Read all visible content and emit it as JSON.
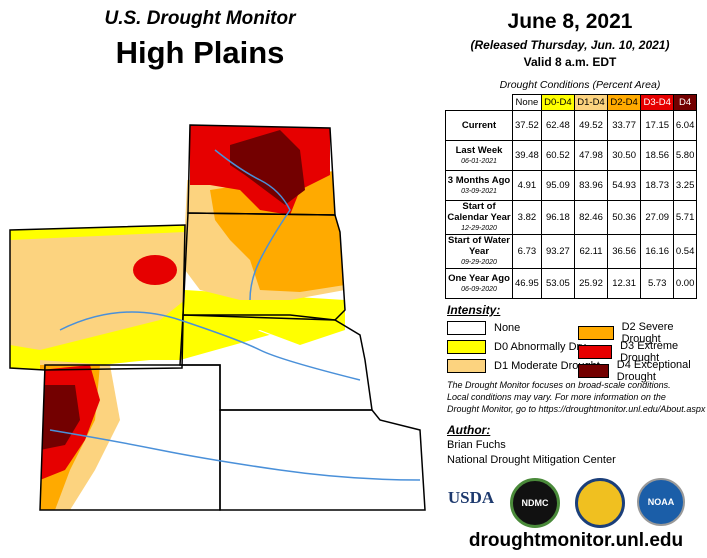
{
  "header": {
    "title": "U.S. Drought Monitor",
    "region": "High Plains",
    "date": "June 8, 2021",
    "released": "(Released Thursday, Jun. 10, 2021)",
    "valid": "Valid 8 a.m. EDT"
  },
  "table": {
    "caption": "Drought Conditions (Percent Area)",
    "columns": [
      "None",
      "D0-D4",
      "D1-D4",
      "D2-D4",
      "D3-D4",
      "D4"
    ],
    "column_colors": [
      "#ffffff",
      "#ffff00",
      "#fcd37f",
      "#ffaa00",
      "#e60000",
      "#730000"
    ],
    "rows": [
      {
        "label": "Current",
        "values": [
          "37.52",
          "62.48",
          "49.52",
          "33.77",
          "17.15",
          "6.04"
        ]
      },
      {
        "label": "Last Week",
        "date": "06-01-2021",
        "values": [
          "39.48",
          "60.52",
          "47.98",
          "30.50",
          "18.56",
          "5.80"
        ]
      },
      {
        "label": "3 Months Ago",
        "date": "03-09-2021",
        "values": [
          "4.91",
          "95.09",
          "83.96",
          "54.93",
          "18.73",
          "3.25"
        ]
      },
      {
        "label": "Start of Calendar Year",
        "date": "12-29-2020",
        "values": [
          "3.82",
          "96.18",
          "82.46",
          "50.36",
          "27.09",
          "5.71"
        ]
      },
      {
        "label": "Start of Water Year",
        "date": "09-29-2020",
        "values": [
          "6.73",
          "93.27",
          "62.11",
          "36.56",
          "16.16",
          "0.54"
        ]
      },
      {
        "label": "One Year Ago",
        "date": "06-09-2020",
        "values": [
          "46.95",
          "53.05",
          "25.92",
          "12.31",
          "5.73",
          "0.00"
        ]
      }
    ]
  },
  "legend": {
    "title": "Intensity:",
    "items": [
      {
        "label": "None",
        "color": "#ffffff"
      },
      {
        "label": "D0 Abnormally Dry",
        "color": "#ffff00"
      },
      {
        "label": "D1 Moderate Drought",
        "color": "#fcd37f"
      },
      {
        "label": "D2 Severe Drought",
        "color": "#ffaa00"
      },
      {
        "label": "D3 Extreme Drought",
        "color": "#e60000"
      },
      {
        "label": "D4 Exceptional Drought",
        "color": "#730000"
      }
    ]
  },
  "note": [
    "The Drought Monitor focuses on broad-scale conditions.",
    "Local conditions may vary. For more information on the",
    "Drought Monitor, go to https://droughtmonitor.unl.edu/About.aspx"
  ],
  "author": {
    "title": "Author:",
    "lines": [
      "Brian Fuchs",
      "National Drought Mitigation Center"
    ]
  },
  "logos": [
    "USDA",
    "NDMC",
    "NOAA"
  ],
  "url": "droughtmonitor.unl.edu"
}
